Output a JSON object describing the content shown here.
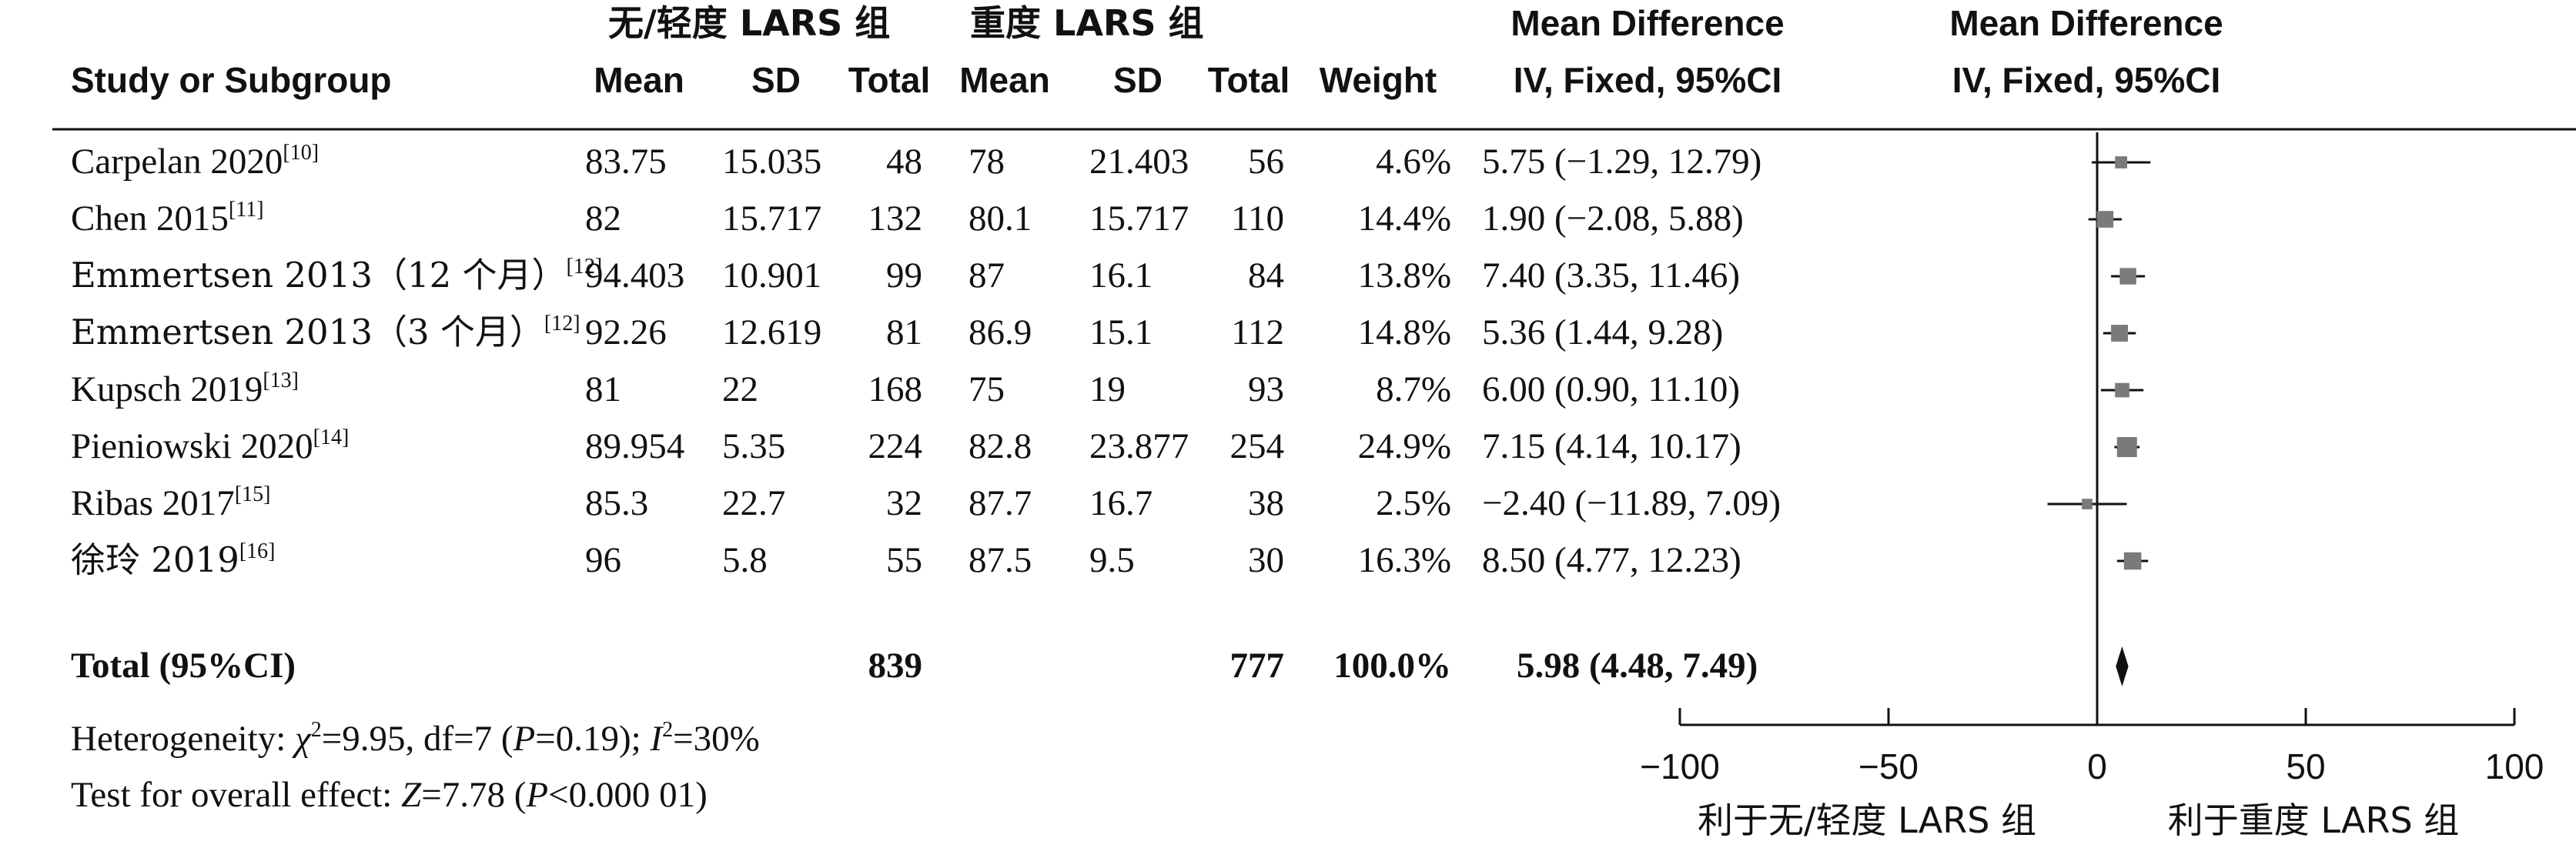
{
  "header": {
    "group1_label": "无/轻度 LARS 组",
    "group2_label": "重度 LARS 组",
    "study_col": "Study or Subgroup",
    "mean": "Mean",
    "sd": "SD",
    "total": "Total",
    "weight": "Weight",
    "md_title": "Mean Difference",
    "md_method": "IV, Fixed, 95%CI",
    "plot_title": "Mean Difference",
    "plot_method": "IV, Fixed, 95%CI"
  },
  "chart_data": {
    "type": "forest",
    "studies": [
      {
        "name": "Carpelan 2020",
        "ref": "[10]",
        "mean1": "83.75",
        "sd1": "15.035",
        "total1": "48",
        "mean2": "78",
        "sd2": "21.403",
        "total2": "56",
        "weight": "4.6%",
        "weight_value": 4.6,
        "ci_text": "5.75 (−1.29, 12.79)",
        "md": 5.75,
        "lo": -1.29,
        "hi": 12.79
      },
      {
        "name": "Chen 2015",
        "ref": "[11]",
        "mean1": "82",
        "sd1": "15.717",
        "total1": "132",
        "mean2": "80.1",
        "sd2": "15.717",
        "total2": "110",
        "weight": "14.4%",
        "weight_value": 14.4,
        "ci_text": "1.90 (−2.08, 5.88)",
        "md": 1.9,
        "lo": -2.08,
        "hi": 5.88
      },
      {
        "name": "Emmertsen 2013（12 个月）",
        "ref": "[12]",
        "mean1": "94.403",
        "sd1": "10.901",
        "total1": "99",
        "mean2": "87",
        "sd2": "16.1",
        "total2": "84",
        "weight": "13.8%",
        "weight_value": 13.8,
        "ci_text": "7.40 (3.35, 11.46)",
        "md": 7.4,
        "lo": 3.35,
        "hi": 11.46
      },
      {
        "name": "Emmertsen 2013（3 个月）",
        "ref": "[12]",
        "mean1": "92.26",
        "sd1": "12.619",
        "total1": "81",
        "mean2": "86.9",
        "sd2": "15.1",
        "total2": "112",
        "weight": "14.8%",
        "weight_value": 14.8,
        "ci_text": "5.36 (1.44, 9.28)",
        "md": 5.36,
        "lo": 1.44,
        "hi": 9.28
      },
      {
        "name": "Kupsch 2019",
        "ref": "[13]",
        "mean1": "81",
        "sd1": "22",
        "total1": "168",
        "mean2": "75",
        "sd2": "19",
        "total2": "93",
        "weight": "8.7%",
        "weight_value": 8.7,
        "ci_text": "6.00 (0.90, 11.10)",
        "md": 6.0,
        "lo": 0.9,
        "hi": 11.1
      },
      {
        "name": "Pieniowski 2020",
        "ref": "[14]",
        "mean1": "89.954",
        "sd1": "5.35",
        "total1": "224",
        "mean2": "82.8",
        "sd2": "23.877",
        "total2": "254",
        "weight": "24.9%",
        "weight_value": 24.9,
        "ci_text": "7.15 (4.14, 10.17)",
        "md": 7.15,
        "lo": 4.14,
        "hi": 10.17
      },
      {
        "name": "Ribas 2017",
        "ref": "[15]",
        "mean1": "85.3",
        "sd1": "22.7",
        "total1": "32",
        "mean2": "87.7",
        "sd2": "16.7",
        "total2": "38",
        "weight": "2.5%",
        "weight_value": 2.5,
        "ci_text": "−2.40 (−11.89, 7.09)",
        "md": -2.4,
        "lo": -11.89,
        "hi": 7.09
      },
      {
        "name": "徐玲 2019",
        "ref": "[16]",
        "mean1": "96",
        "sd1": "5.8",
        "total1": "55",
        "mean2": "87.5",
        "sd2": "9.5",
        "total2": "30",
        "weight": "16.3%",
        "weight_value": 16.3,
        "ci_text": "8.50 (4.77, 12.23)",
        "md": 8.5,
        "lo": 4.77,
        "hi": 12.23
      }
    ],
    "total": {
      "name": "Total (95%CI)",
      "total1": "839",
      "total2": "777",
      "weight": "100.0%",
      "ci_text": "5.98 (4.48, 7.49)",
      "md": 5.98,
      "lo": 4.48,
      "hi": 7.49
    },
    "heterogeneity": {
      "prefix": "Heterogeneity: ",
      "chi_symbol": "χ",
      "chi_rest": "=9.95, df=7 (",
      "p_symbol": "P",
      "p_rest": "=0.19); ",
      "i_symbol": "I",
      "i_rest": "=30%",
      "sup": "2"
    },
    "overall_effect": {
      "prefix": "Test for overall effect: ",
      "z_symbol": "Z",
      "z_rest": "=7.78 (",
      "p_symbol": "P",
      "p_rest": "<0.000 01)"
    },
    "x_axis": {
      "min": -100,
      "max": 100,
      "ticks": [
        -100,
        -50,
        0,
        50,
        100
      ],
      "tick_labels": [
        "−100",
        "−50",
        "0",
        "50",
        "100"
      ]
    },
    "favours_left": "利于无/轻度 LARS 组",
    "favours_right": "利于重度 LARS 组",
    "colors": {
      "marker": "#7a7a7a",
      "line": "#111111"
    }
  }
}
